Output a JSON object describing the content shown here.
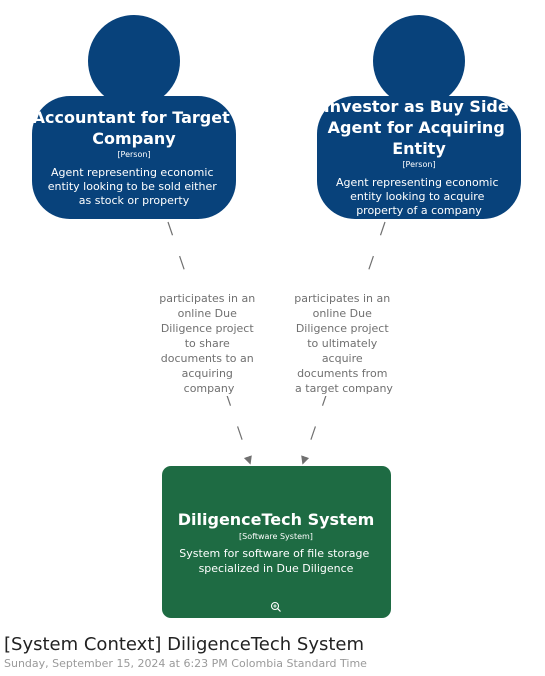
{
  "colors": {
    "person": "#08427b",
    "system": "#1e6b43",
    "relationship": "#707070",
    "relationship_text": "#707070"
  },
  "persons": [
    {
      "name_lines": [
        "Accountant for Target",
        "Company"
      ],
      "type": "[Person]",
      "description_lines": [
        "Agent representing economic",
        "entity looking to be sold either",
        "as stock or property"
      ]
    },
    {
      "name_lines": [
        "Investor as Buy Side",
        "Agent for Acquiring",
        "Entity"
      ],
      "type": "[Person]",
      "description_lines": [
        "Agent representing economic",
        "entity looking to acquire",
        "property of a company"
      ]
    }
  ],
  "system": {
    "name": "DiligenceTech System",
    "type": "[Software System]",
    "description_lines": [
      "System for software of file storage",
      "specialized in Due Diligence"
    ],
    "zoom_icon": "zoom-in-icon"
  },
  "relationships": [
    {
      "label_lines": [
        "participates in an",
        "online Due",
        "Diligence project",
        "to share",
        "documents to an",
        "acquiring",
        "company"
      ]
    },
    {
      "label_lines": [
        "participates in an",
        "online Due",
        "Diligence project",
        "to ultimately",
        "acquire",
        "documents from",
        "a target company"
      ]
    }
  ],
  "footer": {
    "title": "[System Context] DiligenceTech System",
    "date": "Sunday, September 15, 2024 at 6:23 PM Colombia Standard Time"
  }
}
